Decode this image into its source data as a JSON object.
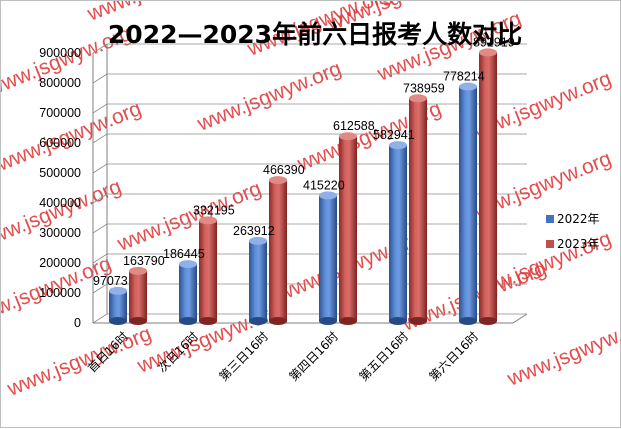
{
  "chart_data": {
    "type": "bar",
    "title": "2022—2023年前六日报考人数对比",
    "categories": [
      "首日16时",
      "次日16时",
      "第三日16时",
      "第四日16时",
      "第五日16时",
      "第六日16时"
    ],
    "series": [
      {
        "name": "2022年",
        "values": [
          97073,
          186445,
          263912,
          415220,
          582941,
          778214
        ]
      },
      {
        "name": "2023年",
        "values": [
          163790,
          332195,
          466390,
          612588,
          738959,
          891919
        ]
      }
    ],
    "ylim": [
      0,
      900000
    ],
    "yticks": [
      "0",
      "100000",
      "200000",
      "300000",
      "400000",
      "500000",
      "600000",
      "700000",
      "800000",
      "900000"
    ],
    "grid": true,
    "legend_position": "right",
    "colors": {
      "2022年": "#4472c4",
      "2023年": "#c0504d"
    }
  },
  "watermark": "www.jsgwyw.org"
}
